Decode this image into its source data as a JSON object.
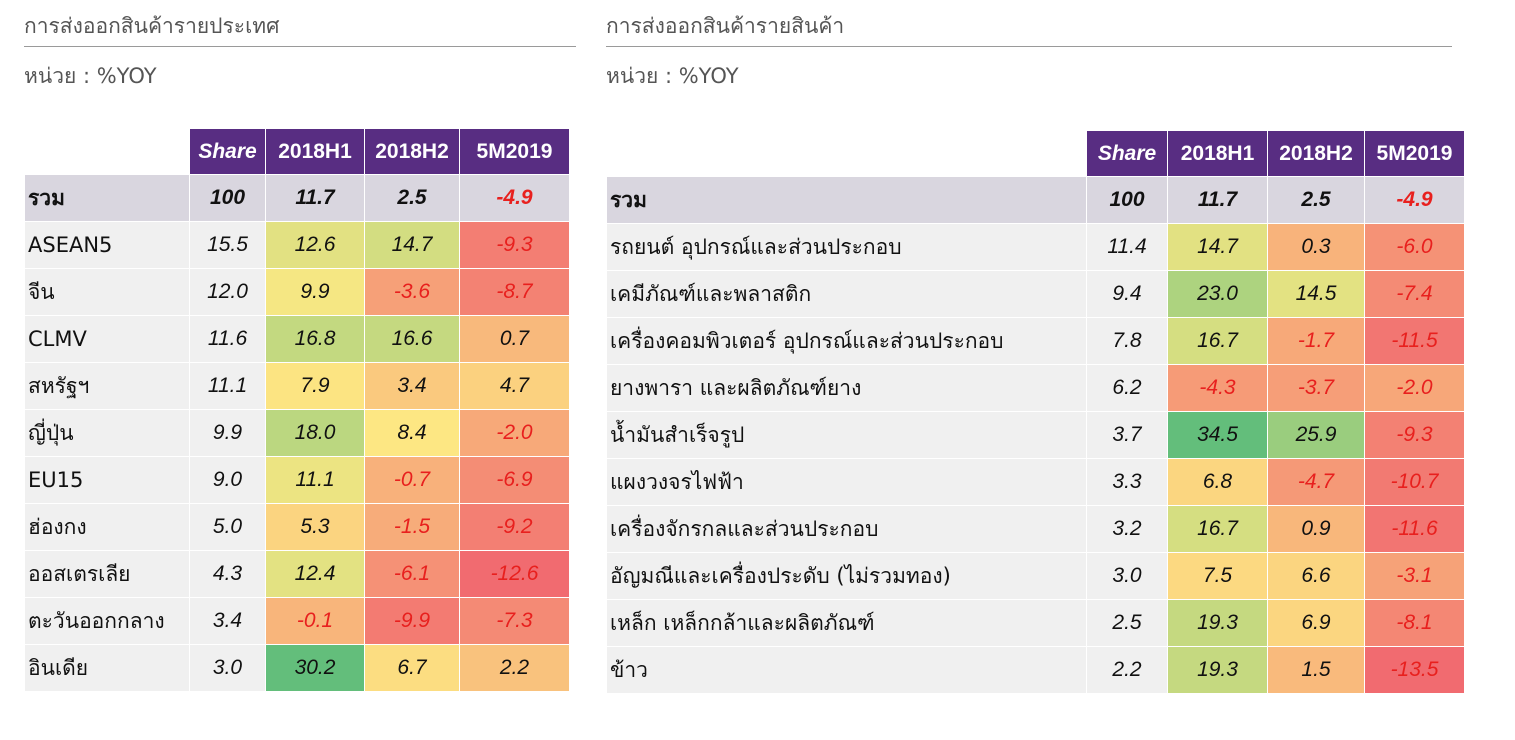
{
  "heatmap_colors": {
    "min": "#f16b70",
    "mid": "#fde983",
    "max": "#63be7b",
    "negative_text": "#e8201e",
    "header_bg": "#582d82",
    "total_row_bg": "#d9d6df"
  },
  "chart_data": [
    {
      "type": "heatmap",
      "title": "การส่งออกสินค้ารายประเทศ",
      "unit": "หน่วย : %YOY",
      "columns": [
        "Share",
        "2018H1",
        "2018H2",
        "5M2019"
      ],
      "total": {
        "label": "รวม",
        "values": [
          "100",
          "11.7",
          "2.5",
          "-4.9"
        ]
      },
      "rows": [
        {
          "label": "ASEAN5",
          "values": [
            "15.5",
            "12.6",
            "14.7",
            "-9.3"
          ]
        },
        {
          "label": "จีน",
          "values": [
            "12.0",
            "9.9",
            "-3.6",
            "-8.7"
          ]
        },
        {
          "label": "CLMV",
          "values": [
            "11.6",
            "16.8",
            "16.6",
            "0.7"
          ]
        },
        {
          "label": "สหรัฐฯ",
          "values": [
            "11.1",
            "7.9",
            "3.4",
            "4.7"
          ]
        },
        {
          "label": "ญี่ปุ่น",
          "values": [
            "9.9",
            "18.0",
            "8.4",
            "-2.0"
          ]
        },
        {
          "label": "EU15",
          "values": [
            "9.0",
            "11.1",
            "-0.7",
            "-6.9"
          ]
        },
        {
          "label": "ฮ่องกง",
          "values": [
            "5.0",
            "5.3",
            "-1.5",
            "-9.2"
          ]
        },
        {
          "label": "ออสเตรเลีย",
          "values": [
            "4.3",
            "12.4",
            "-6.1",
            "-12.6"
          ]
        },
        {
          "label": "ตะวันออกกลาง",
          "values": [
            "3.4",
            "-0.1",
            "-9.9",
            "-7.3"
          ]
        },
        {
          "label": "อินเดีย",
          "values": [
            "3.0",
            "30.2",
            "6.7",
            "2.2"
          ]
        }
      ]
    },
    {
      "type": "heatmap",
      "title": "การส่งออกสินค้ารายสินค้า",
      "unit": "หน่วย : %YOY",
      "columns": [
        "Share",
        "2018H1",
        "2018H2",
        "5M2019"
      ],
      "total": {
        "label": "รวม",
        "values": [
          "100",
          "11.7",
          "2.5",
          "-4.9"
        ]
      },
      "rows": [
        {
          "label": "รถยนต์ อุปกรณ์และส่วนประกอบ",
          "values": [
            "11.4",
            "14.7",
            "0.3",
            "-6.0"
          ]
        },
        {
          "label": "เคมีภัณฑ์และพลาสติก",
          "values": [
            "9.4",
            "23.0",
            "14.5",
            "-7.4"
          ]
        },
        {
          "label": "เครื่องคอมพิวเตอร์ อุปกรณ์และส่วนประกอบ",
          "values": [
            "7.8",
            "16.7",
            "-1.7",
            "-11.5"
          ]
        },
        {
          "label": "ยางพารา และผลิตภัณฑ์ยาง",
          "values": [
            "6.2",
            "-4.3",
            "-3.7",
            "-2.0"
          ]
        },
        {
          "label": "น้ำมันสำเร็จรูป",
          "values": [
            "3.7",
            "34.5",
            "25.9",
            "-9.3"
          ]
        },
        {
          "label": "แผงวงจรไฟฟ้า",
          "values": [
            "3.3",
            "6.8",
            "-4.7",
            "-10.7"
          ]
        },
        {
          "label": "เครื่องจักรกลและส่วนประกอบ",
          "values": [
            "3.2",
            "16.7",
            "0.9",
            "-11.6"
          ]
        },
        {
          "label": "อัญมณีและเครื่องประดับ (ไม่รวมทอง)",
          "values": [
            "3.0",
            "7.5",
            "6.6",
            "-3.1"
          ]
        },
        {
          "label": "เหล็ก เหล็กกล้าและผลิตภัณฑ์",
          "values": [
            "2.5",
            "19.3",
            "6.9",
            "-8.1"
          ]
        },
        {
          "label": "ข้าว",
          "values": [
            "2.2",
            "19.3",
            "1.5",
            "-13.5"
          ]
        }
      ]
    }
  ]
}
